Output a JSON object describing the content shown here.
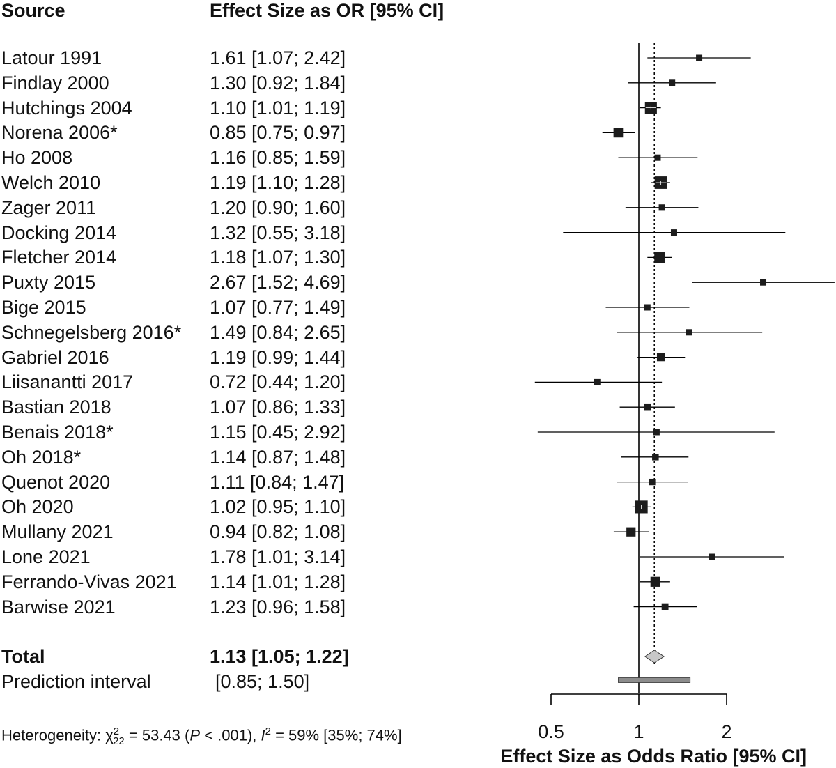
{
  "header": {
    "source": "Source",
    "effect": "Effect Size as OR [95% CI]"
  },
  "studies": [
    {
      "label": "Latour 1991",
      "text": "1.61 [1.07; 2.42]"
    },
    {
      "label": "Findlay 2000",
      "text": "1.30 [0.92; 1.84]"
    },
    {
      "label": "Hutchings 2004",
      "text": "1.10 [1.01; 1.19]"
    },
    {
      "label": "Norena 2006*",
      "text": "0.85 [0.75; 0.97]"
    },
    {
      "label": "Ho 2008",
      "text": "1.16 [0.85; 1.59]"
    },
    {
      "label": "Welch 2010",
      "text": "1.19 [1.10; 1.28]"
    },
    {
      "label": "Zager 2011",
      "text": "1.20 [0.90; 1.60]"
    },
    {
      "label": "Docking 2014",
      "text": "1.32 [0.55; 3.18]"
    },
    {
      "label": "Fletcher 2014",
      "text": "1.18 [1.07; 1.30]"
    },
    {
      "label": "Puxty 2015",
      "text": "2.67 [1.52; 4.69]"
    },
    {
      "label": "Bige 2015",
      "text": "1.07 [0.77; 1.49]"
    },
    {
      "label": "Schnegelsberg 2016*",
      "text": "1.49 [0.84; 2.65]"
    },
    {
      "label": "Gabriel 2016",
      "text": "1.19 [0.99; 1.44]"
    },
    {
      "label": "Liisanantti 2017",
      "text": "0.72 [0.44; 1.20]"
    },
    {
      "label": "Bastian 2018",
      "text": "1.07 [0.86; 1.33]"
    },
    {
      "label": "Benais 2018*",
      "text": "1.15 [0.45; 2.92]"
    },
    {
      "label": "Oh 2018*",
      "text": "1.14 [0.87; 1.48]"
    },
    {
      "label": "Quenot 2020",
      "text": "1.11 [0.84; 1.47]"
    },
    {
      "label": "Oh 2020",
      "text": "1.02 [0.95; 1.10]"
    },
    {
      "label": "Mullany 2021",
      "text": "0.94 [0.82; 1.08]"
    },
    {
      "label": "Lone 2021",
      "text": "1.78 [1.01; 3.14]"
    },
    {
      "label": "Ferrando-Vivas 2021",
      "text": "1.14 [1.01; 1.28]"
    },
    {
      "label": "Barwise 2021",
      "text": "1.23 [0.96; 1.58]"
    }
  ],
  "total": {
    "label": "Total",
    "text": "1.13 [1.05; 1.22]"
  },
  "prediction": {
    "label": "Prediction interval",
    "text": "[0.85; 1.50]"
  },
  "heterogeneity": {
    "prefix": "Heterogeneity: χ",
    "chi_sup": "2",
    "chi_sub": "22",
    "chi_value": " = 53.43 (",
    "p_italic": "P",
    "p_rest": " < .001), ",
    "i_italic": "I",
    "i_sup": "2",
    "i_rest": " = 59% [35%; 74%]"
  },
  "axis": {
    "ticks": [
      "0.5",
      "1",
      "2"
    ],
    "xlabel": "Effect Size as Odds Ratio [95% CI]"
  },
  "colors": {
    "marker": "#1c1c1c",
    "diamond": "#c8c8c8",
    "prediction_bar": "#8c8c8c"
  },
  "chart_data": {
    "type": "forest",
    "scale": "log",
    "x_axis_ticks": [
      0.5,
      1,
      2
    ],
    "reference_line": 1,
    "pooled_line": 1.13,
    "series": [
      {
        "study": "Latour 1991",
        "or": 1.61,
        "lo": 1.07,
        "hi": 2.42
      },
      {
        "study": "Findlay 2000",
        "or": 1.3,
        "lo": 0.92,
        "hi": 1.84
      },
      {
        "study": "Hutchings 2004",
        "or": 1.1,
        "lo": 1.01,
        "hi": 1.19
      },
      {
        "study": "Norena 2006*",
        "or": 0.85,
        "lo": 0.75,
        "hi": 0.97
      },
      {
        "study": "Ho 2008",
        "or": 1.16,
        "lo": 0.85,
        "hi": 1.59
      },
      {
        "study": "Welch 2010",
        "or": 1.19,
        "lo": 1.1,
        "hi": 1.28
      },
      {
        "study": "Zager 2011",
        "or": 1.2,
        "lo": 0.9,
        "hi": 1.6
      },
      {
        "study": "Docking 2014",
        "or": 1.32,
        "lo": 0.55,
        "hi": 3.18
      },
      {
        "study": "Fletcher 2014",
        "or": 1.18,
        "lo": 1.07,
        "hi": 1.3
      },
      {
        "study": "Puxty 2015",
        "or": 2.67,
        "lo": 1.52,
        "hi": 4.69
      },
      {
        "study": "Bige 2015",
        "or": 1.07,
        "lo": 0.77,
        "hi": 1.49
      },
      {
        "study": "Schnegelsberg 2016*",
        "or": 1.49,
        "lo": 0.84,
        "hi": 2.65
      },
      {
        "study": "Gabriel 2016",
        "or": 1.19,
        "lo": 0.99,
        "hi": 1.44
      },
      {
        "study": "Liisanantti 2017",
        "or": 0.72,
        "lo": 0.44,
        "hi": 1.2
      },
      {
        "study": "Bastian 2018",
        "or": 1.07,
        "lo": 0.86,
        "hi": 1.33
      },
      {
        "study": "Benais 2018*",
        "or": 1.15,
        "lo": 0.45,
        "hi": 2.92
      },
      {
        "study": "Oh 2018*",
        "or": 1.14,
        "lo": 0.87,
        "hi": 1.48
      },
      {
        "study": "Quenot 2020",
        "or": 1.11,
        "lo": 0.84,
        "hi": 1.47
      },
      {
        "study": "Oh 2020",
        "or": 1.02,
        "lo": 0.95,
        "hi": 1.1
      },
      {
        "study": "Mullany 2021",
        "or": 0.94,
        "lo": 0.82,
        "hi": 1.08
      },
      {
        "study": "Lone 2021",
        "or": 1.78,
        "lo": 1.01,
        "hi": 3.14
      },
      {
        "study": "Ferrando-Vivas 2021",
        "or": 1.14,
        "lo": 1.01,
        "hi": 1.28
      },
      {
        "study": "Barwise 2021",
        "or": 1.23,
        "lo": 0.96,
        "hi": 1.58
      }
    ],
    "total": {
      "or": 1.13,
      "lo": 1.05,
      "hi": 1.22
    },
    "prediction_interval": {
      "lo": 0.85,
      "hi": 1.5
    },
    "heterogeneity": {
      "chi2": 53.43,
      "df": 22,
      "p": "< .001",
      "I2": "59%",
      "I2_ci": "[35%; 74%]"
    }
  }
}
